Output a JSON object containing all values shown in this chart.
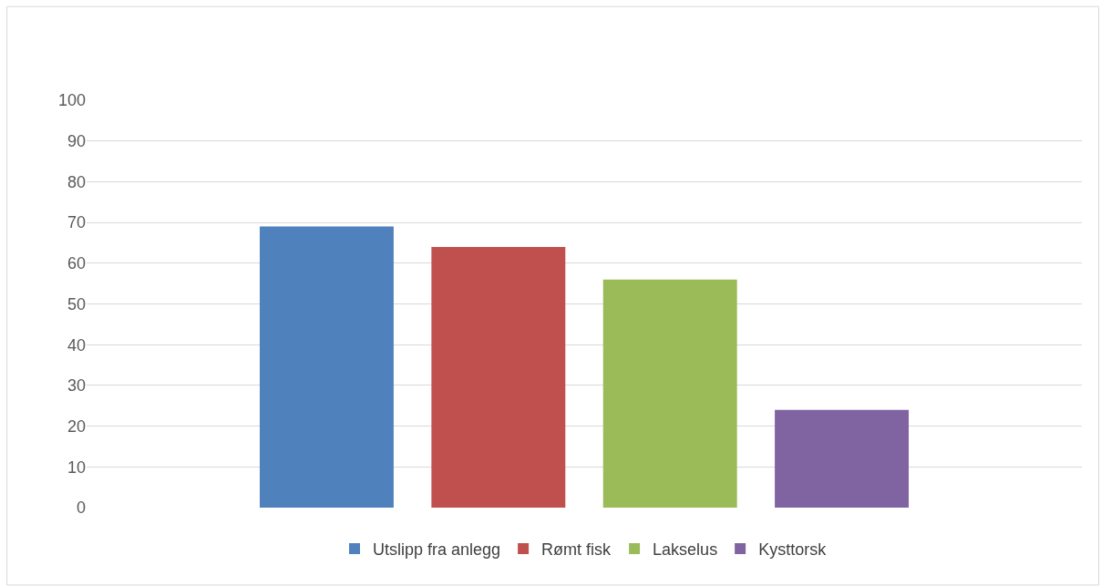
{
  "chart_data": {
    "type": "bar",
    "categories": [
      null
    ],
    "series": [
      {
        "name": "Utslipp fra anlegg",
        "color": "#4f81bd",
        "values": [
          69
        ]
      },
      {
        "name": "Rømt fisk",
        "color": "#c0504d",
        "values": [
          64
        ]
      },
      {
        "name": "Lakselus",
        "color": "#9bbb59",
        "values": [
          56
        ]
      },
      {
        "name": "Kysttorsk",
        "color": "#8064a2",
        "values": [
          24
        ]
      }
    ],
    "ylim": [
      0,
      100
    ],
    "yticks": [
      0,
      10,
      20,
      30,
      40,
      50,
      60,
      70,
      80,
      90,
      100
    ],
    "grid": "y",
    "legend": "bottom",
    "tick_labels": "y"
  }
}
